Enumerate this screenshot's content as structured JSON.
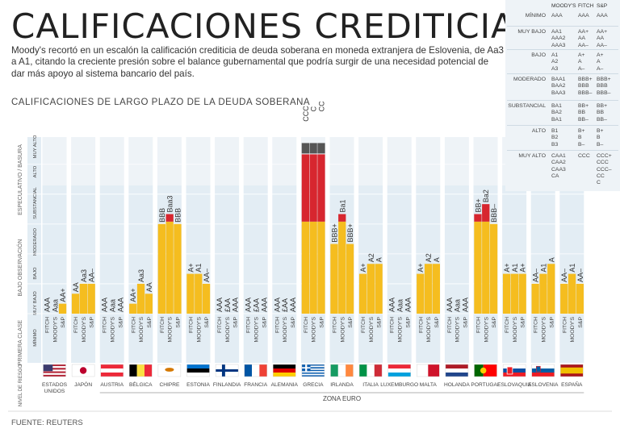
{
  "title": "CALIFICACIONES CREDITICIAS",
  "description": "Moody's recortó en un escalón la calificación crediticia de deuda soberana en moneda extranjera de Eslovenia, de Aa3 a A1, citando la creciente presión sobre el balance gubernamental que podría surgir de una necesidad potencial de dar más apoyo al sistema bancario del país.",
  "source": "FUENTE: REUTERS",
  "legend": {
    "headers": [
      "MOODY'S",
      "FITCH",
      "S&P"
    ],
    "rows": [
      {
        "label": "MÍNIMO",
        "moodys": "AAA",
        "fitch": "AAA",
        "sp": "AAA"
      },
      {
        "label": "MUY BAJO",
        "moodys": "AA1\nAAA2\nAAA3",
        "fitch": "AA+\nAA\nAA–",
        "sp": "AA+\nAA\nAA–"
      },
      {
        "label": "BAJO",
        "moodys": "A1\nA2\nA3",
        "fitch": "A+\nA\nA–",
        "sp": "A+\nA\nA–"
      },
      {
        "label": "MODERADO",
        "moodys": "BAA1\nBAA2\nBAA3",
        "fitch": "BBB+\nBBB\nBBB–",
        "sp": "BBB+\nBBB\nBBB–"
      },
      {
        "label": "SUBSTANCIAL",
        "moodys": "BA1\nBA2\nBA1",
        "fitch": "BB+\nBB\nBB–",
        "sp": "BB+\nBB\nBB–"
      },
      {
        "label": "ALTO",
        "moodys": "B1\nB2\nB3",
        "fitch": "B+\nB\nB–",
        "sp": "B+\nB\nB–"
      },
      {
        "label": "MUY ALTO",
        "moodys": "CAA1\nCAA2\nCAA3\nCA",
        "fitch": "CCC",
        "sp": "CCC+\nCCC\nCCC–\nCC\nC"
      }
    ]
  },
  "chart_data": {
    "type": "bar",
    "title": "CALIFICACIONES DE LARGO PLAZO DE LA DEUDA SOBERANA",
    "agencies": [
      "FITCH",
      "MOODY'S",
      "S&P"
    ],
    "levels": [
      "PRIMERA CLASE",
      "BAJO OBSERVACIÓN",
      "ESPECULATIVO / BASURA"
    ],
    "sublevels": [
      "MÍNIMO",
      "MUY BAJO",
      "BAJO",
      "MODERADO",
      "SUBSTANCIAL",
      "ALTO",
      "MUY ALTO"
    ],
    "row_label_title": "NIVEL DE RIESGO",
    "zone_label": "ZONA EURO",
    "countries": [
      {
        "name": "ESTADOS UNIDOS",
        "flag": "us",
        "labels": [
          "AAA",
          "Aaa",
          "AA+"
        ],
        "notches": [
          0,
          0,
          1
        ]
      },
      {
        "name": "JAPÓN",
        "flag": "jp",
        "labels": [
          "AA",
          "Aa3",
          "AA–"
        ],
        "notches": [
          2,
          3,
          3
        ]
      },
      {
        "name": "AUSTRIA",
        "flag": "at",
        "labels": [
          "AAA",
          "Aaa",
          "AAA"
        ],
        "notches": [
          0,
          0,
          0
        ]
      },
      {
        "name": "BÉLGICA",
        "flag": "be",
        "labels": [
          "AA+",
          "Aa3",
          "AA"
        ],
        "notches": [
          1,
          3,
          2
        ]
      },
      {
        "name": "CHIPRE",
        "flag": "cy",
        "labels": [
          "BBB",
          "Baa3",
          "BBB"
        ],
        "notches": [
          9,
          10,
          9
        ]
      },
      {
        "name": "ESTONIA",
        "flag": "ee",
        "labels": [
          "A+",
          "A1",
          "AA–"
        ],
        "notches": [
          4,
          4,
          3
        ]
      },
      {
        "name": "FINLANDIA",
        "flag": "fi",
        "labels": [
          "AAA",
          "£AA",
          "AAA"
        ],
        "notches": [
          0,
          0,
          0
        ]
      },
      {
        "name": "FRANCIA",
        "flag": "fr",
        "labels": [
          "AAA",
          "£AA",
          "AAA"
        ],
        "notches": [
          0,
          0,
          0
        ]
      },
      {
        "name": "ALEMANIA",
        "flag": "de",
        "labels": [
          "AAA",
          "£AA",
          "AAA"
        ],
        "notches": [
          0,
          0,
          0
        ]
      },
      {
        "name": "GRECIA",
        "flag": "gr",
        "labels": [
          "CCC",
          "C",
          "CC"
        ],
        "notches": [
          18,
          19,
          19
        ]
      },
      {
        "name": "IRLANDA",
        "flag": "ie",
        "labels": [
          "BBB+",
          "Ba1",
          "BBB+"
        ],
        "notches": [
          7,
          10,
          7
        ]
      },
      {
        "name": "ITALIA",
        "flag": "it",
        "labels": [
          "A+",
          "A2",
          "A"
        ],
        "notches": [
          4,
          5,
          5
        ]
      },
      {
        "name": "LUXEMBURGO",
        "flag": "lu",
        "labels": [
          "AAA",
          "Aaa",
          "AAA"
        ],
        "notches": [
          0,
          0,
          0
        ]
      },
      {
        "name": "MALTA",
        "flag": "mt",
        "labels": [
          "A+",
          "A2",
          "A"
        ],
        "notches": [
          4,
          5,
          5
        ]
      },
      {
        "name": "HOLANDA",
        "flag": "nl",
        "labels": [
          "AAA",
          "Aaa",
          "AAA"
        ],
        "notches": [
          0,
          0,
          0
        ]
      },
      {
        "name": "PORTUGAL",
        "flag": "pt",
        "labels": [
          "BB+",
          "Ba2",
          "BBB–"
        ],
        "notches": [
          10,
          11,
          9
        ]
      },
      {
        "name": "ESLOVAQUIA",
        "flag": "sk",
        "labels": [
          "A+",
          "A1",
          "A+"
        ],
        "notches": [
          4,
          4,
          4
        ]
      },
      {
        "name": "ESLOVENIA",
        "flag": "si",
        "labels": [
          "AA–",
          "A1",
          "A"
        ],
        "notches": [
          3,
          4,
          5
        ]
      },
      {
        "name": "ESPAÑA",
        "flag": "es",
        "labels": [
          "AA–",
          "A1",
          "AA–"
        ],
        "notches": [
          3,
          4,
          3
        ]
      }
    ],
    "colors": {
      "investment": "#f5bd1f",
      "speculative": "#d7262f",
      "very_high": "#555555",
      "column_bg": "#e3edf4",
      "top_bg": "#eef3f7"
    }
  }
}
